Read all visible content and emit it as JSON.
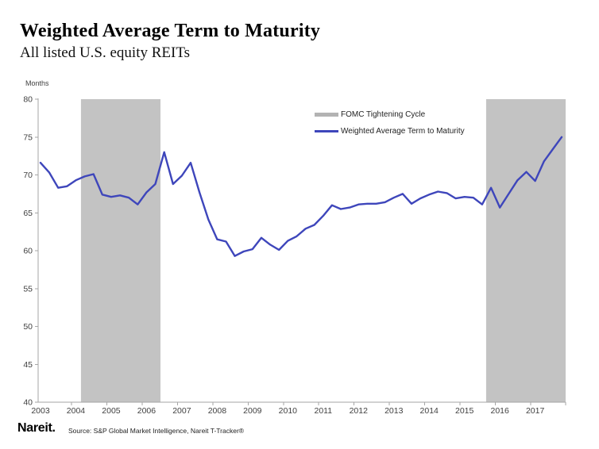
{
  "header": {
    "title": "Weighted Average Term to Maturity",
    "subtitle": "All listed U.S. equity REITs"
  },
  "chart_data": {
    "type": "line",
    "title": "Weighted Average Term to Maturity",
    "subtitle": "All listed U.S. equity REITs",
    "ylabel": "Months",
    "xlabel": "",
    "ylim": [
      40,
      80
    ],
    "ytick_step": 5,
    "grid": false,
    "legend_position": "upper-center",
    "years": [
      "2003",
      "2004",
      "2005",
      "2006",
      "2007",
      "2008",
      "2009",
      "2010",
      "2011",
      "2012",
      "2013",
      "2014",
      "2015",
      "2016",
      "2017"
    ],
    "points_per_year": 4,
    "x_frequency": "quarterly",
    "series": [
      {
        "name": "Weighted Average Term to Maturity",
        "color": "#3e46bb",
        "values": [
          71.6,
          70.3,
          68.3,
          68.5,
          69.3,
          69.8,
          70.1,
          67.4,
          67.1,
          67.3,
          67.0,
          66.1,
          67.7,
          68.8,
          73.0,
          68.8,
          69.9,
          71.6,
          67.7,
          64.1,
          61.5,
          61.2,
          59.3,
          59.9,
          60.2,
          61.7,
          60.8,
          60.1,
          61.3,
          61.9,
          62.9,
          63.4,
          64.6,
          66.0,
          65.5,
          65.7,
          66.1,
          66.2,
          66.2,
          66.4,
          67.0,
          67.5,
          66.2,
          66.9,
          67.4,
          67.8,
          67.6,
          66.9,
          67.1,
          67.0,
          66.1,
          68.3,
          65.7,
          67.5,
          69.3,
          70.4,
          69.2,
          71.8,
          73.4,
          75.0
        ]
      }
    ],
    "bands": {
      "name": "FOMC Tightening Cycle",
      "color": "#c3c3c3",
      "ranges_in_point_index": [
        [
          4.58,
          13.58
        ],
        [
          50.45,
          59.45
        ]
      ]
    },
    "legend": [
      {
        "label": "FOMC Tightening Cycle",
        "swatch_color": "#b3b3b3",
        "swatch": "thick-band"
      },
      {
        "label": "Weighted Average Term to Maturity",
        "swatch_color": "#3e46bb",
        "swatch": "line"
      }
    ],
    "axis_color": "#a6a6a6"
  },
  "footer": {
    "logo": "Nareit.",
    "source": "Source: S&P Global Market Intelligence, Nareit T-Tracker®"
  }
}
